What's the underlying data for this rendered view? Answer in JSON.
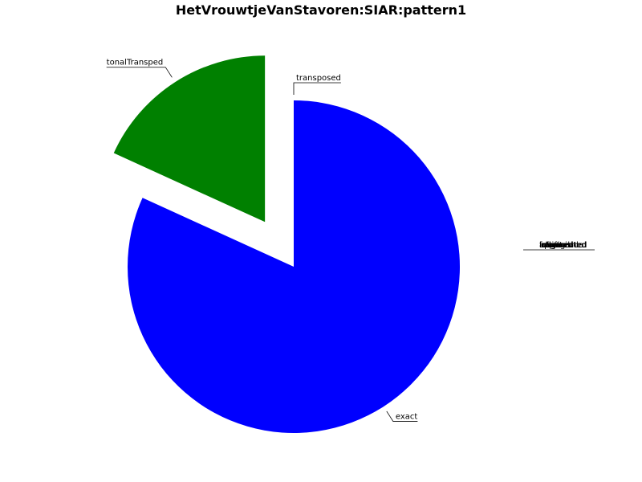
{
  "chart_data": {
    "type": "pie",
    "title": "HetVrouwtjeVanStavoren:SIAR:pattern1",
    "slices": [
      {
        "label": "transposed",
        "value": 0,
        "color": "#ff0000"
      },
      {
        "label": "tonalTransped",
        "value": 18.2,
        "color": "#008000"
      },
      {
        "label": "exact",
        "value": 81.8,
        "color": "#0000ff"
      }
    ],
    "zero_labels": [
      "approx",
      "augmented",
      "diminished",
      "inverted",
      "retrograde",
      "shifted",
      "fragmented",
      "other"
    ],
    "legend": "none",
    "grid": false
  }
}
